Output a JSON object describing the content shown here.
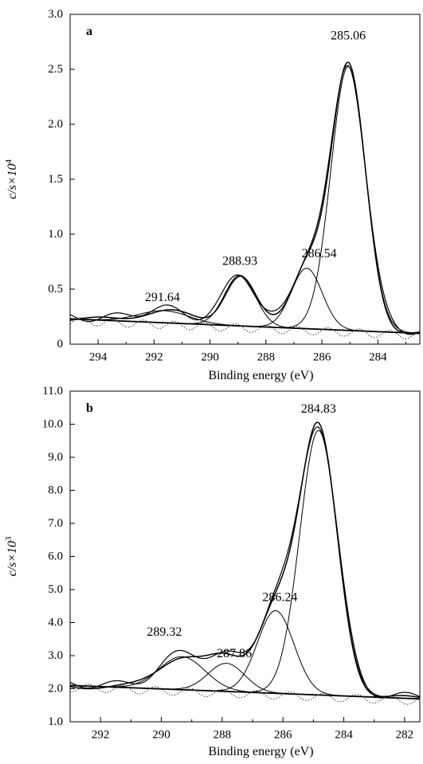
{
  "chart_data": [
    {
      "type": "line",
      "panel_label": "a",
      "xlabel": "Binding energy (eV)",
      "ylabel_main": "c/s×10",
      "ylabel_exp": "4",
      "x_reversed": true,
      "xlim": [
        295,
        282.5
      ],
      "ylim": [
        0,
        3.0
      ],
      "x_ticks": [
        294,
        292,
        290,
        288,
        286,
        284
      ],
      "x_tick_labels": [
        "294",
        "292",
        "290",
        "288",
        "286",
        "284"
      ],
      "y_ticks": [
        0,
        0.5,
        1.0,
        1.5,
        2.0,
        2.5,
        3.0
      ],
      "y_tick_labels": [
        "0",
        "0.5",
        "1.0",
        "1.5",
        "2.0",
        "2.5",
        "3.0"
      ],
      "grid": false,
      "background": {
        "start": [
          295,
          0.23
        ],
        "end": [
          282.7,
          0.1
        ]
      },
      "components": [
        {
          "center": 285.06,
          "amplitude": 2.4,
          "sigma": 0.62
        },
        {
          "center": 286.54,
          "amplitude": 0.55,
          "sigma": 0.55
        },
        {
          "center": 288.93,
          "amplitude": 0.46,
          "sigma": 0.55
        },
        {
          "center": 291.64,
          "amplitude": 0.11,
          "sigma": 0.9
        }
      ],
      "peak_labels": [
        {
          "text": "285.06",
          "x": 285.06,
          "y": 2.77
        },
        {
          "text": "286.54",
          "x": 286.1,
          "y": 0.79
        },
        {
          "text": "288.93",
          "x": 288.93,
          "y": 0.72
        },
        {
          "text": "291.64",
          "x": 291.7,
          "y": 0.39
        }
      ],
      "colors": {
        "line": "#000000",
        "residual": "#333333"
      }
    },
    {
      "type": "line",
      "panel_label": "b",
      "xlabel": "Binding energy (eV)",
      "ylabel_main": "c/s×10",
      "ylabel_exp": "3",
      "x_reversed": true,
      "xlim": [
        293,
        281.5
      ],
      "ylim": [
        1.0,
        11.0
      ],
      "x_ticks": [
        292,
        290,
        288,
        286,
        284,
        282
      ],
      "x_tick_labels": [
        "292",
        "290",
        "288",
        "286",
        "284",
        "282"
      ],
      "y_ticks": [
        1.0,
        2.0,
        3.0,
        4.0,
        5.0,
        6.0,
        7.0,
        8.0,
        9.0,
        10.0,
        11.0
      ],
      "y_tick_labels": [
        "1.0",
        "2.0",
        "3.0",
        "4.0",
        "5.0",
        "6.0",
        "7.0",
        "8.0",
        "9.0",
        "10.0",
        "11.0"
      ],
      "grid": false,
      "background": {
        "start": [
          293,
          2.1
        ],
        "end": [
          281.7,
          1.7
        ]
      },
      "components": [
        {
          "center": 284.83,
          "amplitude": 8.0,
          "sigma": 0.62
        },
        {
          "center": 286.24,
          "amplitude": 2.5,
          "sigma": 0.6
        },
        {
          "center": 287.86,
          "amplitude": 0.85,
          "sigma": 0.6
        },
        {
          "center": 289.32,
          "amplitude": 1.0,
          "sigma": 0.75
        }
      ],
      "peak_labels": [
        {
          "text": "284.83",
          "x": 284.83,
          "y": 10.35
        },
        {
          "text": "286.24",
          "x": 286.1,
          "y": 4.65
        },
        {
          "text": "287.86",
          "x": 287.6,
          "y": 2.95
        },
        {
          "text": "289.32",
          "x": 289.9,
          "y": 3.6
        }
      ],
      "colors": {
        "line": "#000000",
        "residual": "#333333"
      }
    }
  ]
}
